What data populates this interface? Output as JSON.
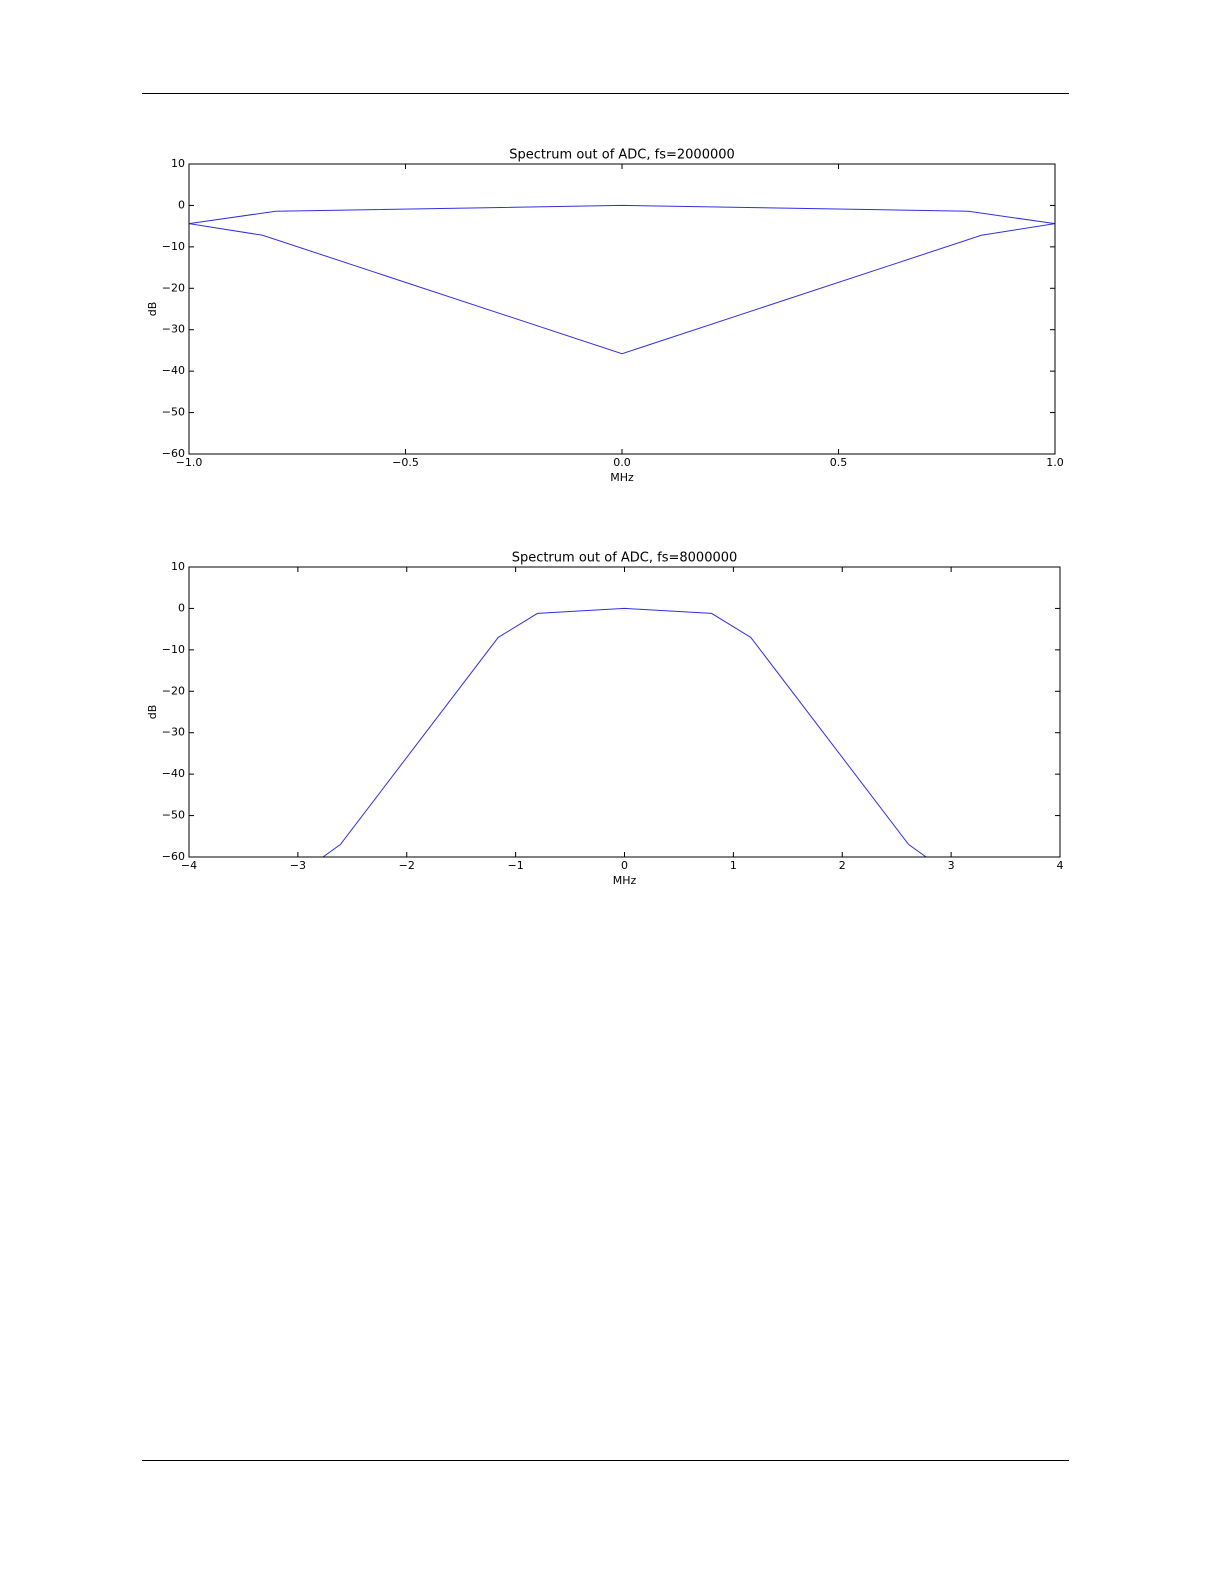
{
  "chart_data": [
    {
      "type": "line",
      "title": "Spectrum out of ADC, fs=2000000",
      "xlabel": "MHz",
      "ylabel": "dB",
      "x": [
        -1,
        -0.8,
        0,
        0.8,
        1,
        0.83,
        0,
        -0.83,
        -1
      ],
      "series": [
        {
          "color": "#3030e0",
          "values": [
            -4.4,
            -1.4,
            0,
            -1.4,
            -4.4,
            -7.2,
            -35.8,
            -7.2,
            -4.4
          ]
        }
      ],
      "xlim": [
        -1,
        1
      ],
      "xticks": [
        {
          "value": -1,
          "label": "−1.0"
        },
        {
          "value": -0.5,
          "label": "−0.5"
        },
        {
          "value": 0,
          "label": "0.0"
        },
        0.5,
        {
          "value": 1,
          "label": "1.0"
        }
      ],
      "ylim": [
        -60,
        10
      ],
      "yticks": [
        {
          "value": -60,
          "label": "−60"
        },
        {
          "value": -50,
          "label": "−50"
        },
        {
          "value": -40,
          "label": "−40"
        },
        {
          "value": -30,
          "label": "−30"
        },
        {
          "value": -20,
          "label": "−20"
        },
        {
          "value": -10,
          "label": "−10"
        },
        0,
        10
      ],
      "grid": false
    },
    {
      "type": "line",
      "title": "Spectrum out of ADC, fs=8000000",
      "xlabel": "MHz",
      "ylabel": "dB",
      "x": [
        -2.77,
        -2.61,
        -1.16,
        -0.8,
        0,
        0.8,
        1.16,
        2.61,
        2.77
      ],
      "series": [
        {
          "color": "#3030e0",
          "values": [
            -60,
            -57,
            -7,
            -1.2,
            0,
            -1.2,
            -7,
            -57,
            -60
          ]
        }
      ],
      "xlim": [
        -4,
        4
      ],
      "xticks": [
        {
          "value": -4,
          "label": "−4"
        },
        {
          "value": -3,
          "label": "−3"
        },
        {
          "value": -2,
          "label": "−2"
        },
        {
          "value": -1,
          "label": "−1"
        },
        0,
        1,
        2,
        3,
        4
      ],
      "ylim": [
        -60,
        10
      ],
      "yticks": [
        {
          "value": -60,
          "label": "−60"
        },
        {
          "value": -50,
          "label": "−50"
        },
        {
          "value": -40,
          "label": "−40"
        },
        {
          "value": -30,
          "label": "−30"
        },
        {
          "value": -20,
          "label": "−20"
        },
        {
          "value": -10,
          "label": "−10"
        },
        0,
        10
      ],
      "grid": false
    }
  ]
}
